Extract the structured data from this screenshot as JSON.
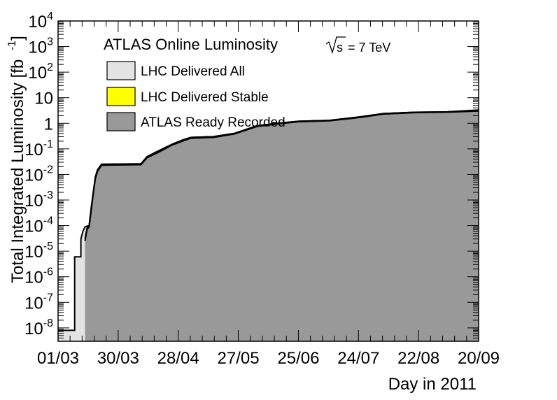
{
  "chart_data": {
    "type": "area",
    "title": "ATLAS Online Luminosity",
    "annotation": "= 7 TeV",
    "annotation_symbol": "s",
    "xlabel": "Day in 2011",
    "ylabel": "Total Integrated Luminosity [fb",
    "ylabel_unit": "-1",
    "ylabel_close": "]",
    "yscale": "log",
    "xlim": [
      "2011-03-01",
      "2011-09-20"
    ],
    "ylim": [
      3e-09,
      10000
    ],
    "x_ticks": [
      "01/03",
      "30/03",
      "28/04",
      "27/05",
      "25/06",
      "24/07",
      "22/08",
      "20/09"
    ],
    "y_ticks": [
      {
        "value": 1e-08,
        "base": "10",
        "exp": "-8"
      },
      {
        "value": 1e-07,
        "base": "10",
        "exp": "-7"
      },
      {
        "value": 1e-06,
        "base": "10",
        "exp": "-6"
      },
      {
        "value": 1e-05,
        "base": "10",
        "exp": "-5"
      },
      {
        "value": 0.0001,
        "base": "10",
        "exp": "-4"
      },
      {
        "value": 0.001,
        "base": "10",
        "exp": "-3"
      },
      {
        "value": 0.01,
        "base": "10",
        "exp": "-2"
      },
      {
        "value": 0.1,
        "base": "10",
        "exp": "-1"
      },
      {
        "value": 1,
        "base": "1",
        "exp": ""
      },
      {
        "value": 10,
        "base": "10",
        "exp": ""
      },
      {
        "value": 100,
        "base": "10",
        "exp": "2"
      },
      {
        "value": 1000,
        "base": "10",
        "exp": "3"
      },
      {
        "value": 10000,
        "base": "10",
        "exp": "4"
      }
    ],
    "legend_placement": "top-left",
    "series": [
      {
        "name": "LHC Delivered All",
        "color": "#e3e3e3",
        "points": [
          [
            "2011-03-01",
            8e-09
          ],
          [
            "2011-03-09",
            8e-09
          ],
          [
            "2011-03-09",
            6e-06
          ],
          [
            "2011-03-12",
            6e-06
          ],
          [
            "2011-03-12",
            3e-05
          ],
          [
            "2011-03-13",
            6e-05
          ],
          [
            "2011-03-14",
            9e-05
          ],
          [
            "2011-03-16",
            0.0001
          ],
          [
            "2011-03-17",
            0.0005
          ],
          [
            "2011-03-18",
            0.002
          ],
          [
            "2011-03-19",
            0.008
          ],
          [
            "2011-03-20",
            0.015
          ],
          [
            "2011-03-22",
            0.025
          ],
          [
            "2011-04-10",
            0.026
          ],
          [
            "2011-04-13",
            0.05
          ],
          [
            "2011-04-18",
            0.08
          ],
          [
            "2011-04-25",
            0.15
          ],
          [
            "2011-04-30",
            0.22
          ],
          [
            "2011-05-04",
            0.28
          ],
          [
            "2011-05-15",
            0.3
          ],
          [
            "2011-05-25",
            0.4
          ],
          [
            "2011-06-05",
            0.8
          ],
          [
            "2011-06-15",
            1.0
          ],
          [
            "2011-06-25",
            1.2
          ],
          [
            "2011-07-10",
            1.3
          ],
          [
            "2011-07-25",
            1.8
          ],
          [
            "2011-08-05",
            2.4
          ],
          [
            "2011-08-20",
            2.7
          ],
          [
            "2011-09-05",
            2.8
          ],
          [
            "2011-09-20",
            3.3
          ]
        ]
      },
      {
        "name": "LHC Delivered Stable",
        "color": "#ffff00",
        "points": [
          [
            "2011-03-14",
            3e-05
          ],
          [
            "2011-03-15",
            8e-05
          ],
          [
            "2011-03-16",
            0.0001
          ],
          [
            "2011-03-17",
            0.0005
          ],
          [
            "2011-03-18",
            0.002
          ],
          [
            "2011-03-19",
            0.008
          ],
          [
            "2011-03-20",
            0.015
          ],
          [
            "2011-03-22",
            0.025
          ],
          [
            "2011-04-10",
            0.026
          ],
          [
            "2011-04-13",
            0.05
          ],
          [
            "2011-04-18",
            0.08
          ],
          [
            "2011-04-25",
            0.15
          ],
          [
            "2011-04-30",
            0.22
          ],
          [
            "2011-05-04",
            0.28
          ],
          [
            "2011-05-15",
            0.3
          ],
          [
            "2011-05-25",
            0.4
          ],
          [
            "2011-06-05",
            0.8
          ],
          [
            "2011-06-15",
            1.0
          ],
          [
            "2011-06-25",
            1.2
          ],
          [
            "2011-07-10",
            1.3
          ],
          [
            "2011-07-25",
            1.8
          ],
          [
            "2011-08-05",
            2.4
          ],
          [
            "2011-08-20",
            2.7
          ],
          [
            "2011-09-05",
            2.8
          ],
          [
            "2011-09-20",
            3.2
          ]
        ]
      },
      {
        "name": "ATLAS Ready Recorded",
        "color": "#999999",
        "points": [
          [
            "2011-03-14",
            2.5e-05
          ],
          [
            "2011-03-15",
            7e-05
          ],
          [
            "2011-03-16",
            9e-05
          ],
          [
            "2011-03-17",
            0.0004
          ],
          [
            "2011-03-18",
            0.0018
          ],
          [
            "2011-03-19",
            0.007
          ],
          [
            "2011-03-20",
            0.013
          ],
          [
            "2011-03-22",
            0.023
          ],
          [
            "2011-04-10",
            0.024
          ],
          [
            "2011-04-13",
            0.045
          ],
          [
            "2011-04-18",
            0.07
          ],
          [
            "2011-04-25",
            0.14
          ],
          [
            "2011-04-30",
            0.2
          ],
          [
            "2011-05-04",
            0.26
          ],
          [
            "2011-05-15",
            0.28
          ],
          [
            "2011-05-25",
            0.38
          ],
          [
            "2011-06-05",
            0.75
          ],
          [
            "2011-06-15",
            0.95
          ],
          [
            "2011-06-25",
            1.15
          ],
          [
            "2011-07-10",
            1.25
          ],
          [
            "2011-07-25",
            1.7
          ],
          [
            "2011-08-05",
            2.3
          ],
          [
            "2011-08-20",
            2.6
          ],
          [
            "2011-09-05",
            2.7
          ],
          [
            "2011-09-20",
            3.0
          ]
        ]
      }
    ]
  }
}
